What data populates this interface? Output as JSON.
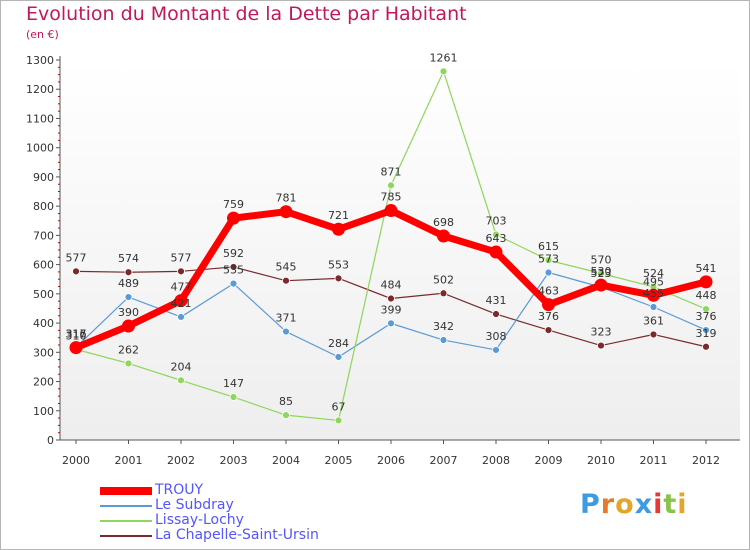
{
  "title": "Evolution du Montant de la Dette par Habitant",
  "subtitle": "(en €)",
  "brand": {
    "letters": [
      "P",
      "r",
      "o",
      "x",
      "i",
      "t",
      "i"
    ],
    "colors": [
      "#3f9be0",
      "#e57a2a",
      "#e5a52a",
      "#3f9be0",
      "#e53935",
      "#8bc34a",
      "#e5a52a"
    ]
  },
  "chart_data": {
    "type": "line",
    "title": "Evolution du Montant de la Dette par Habitant",
    "ylabel": "(en €)",
    "xlabel": "",
    "x": [
      "2000",
      "2001",
      "2002",
      "2003",
      "2004",
      "2005",
      "2006",
      "2007",
      "2008",
      "2009",
      "2010",
      "2011",
      "2012"
    ],
    "yticks": [
      "0",
      "100",
      "200",
      "300",
      "400",
      "500",
      "600",
      "700",
      "800",
      "900",
      "1000",
      "1100",
      "1200",
      "1300"
    ],
    "ylim": [
      0,
      1300
    ],
    "grid": false,
    "legend": "bottom-left",
    "series": [
      {
        "name": "La Chapelle-Saint-Ursin",
        "color": "#7a2a2a",
        "values": [
          577,
          574,
          577,
          592,
          545,
          553,
          484,
          502,
          431,
          376,
          323,
          361,
          319
        ],
        "labels": [
          "577",
          "574",
          "577",
          "592",
          "545",
          "553",
          "484",
          "502",
          "431",
          "376",
          "323",
          "361",
          "319"
        ]
      },
      {
        "name": "Le Subdray",
        "color": "#5b9bd5",
        "values": [
          317,
          489,
          421,
          535,
          371,
          284,
          399,
          342,
          308,
          573,
          523,
          455,
          376
        ],
        "labels": [
          "317",
          "489",
          "421",
          "535",
          "371",
          "284",
          "399",
          "342",
          "308",
          "573",
          "523",
          "455",
          "376"
        ]
      },
      {
        "name": "Lissay-Lochy",
        "color": "#8fd65a",
        "values": [
          310,
          262,
          204,
          147,
          85,
          67,
          871,
          1261,
          703,
          615,
          570,
          524,
          448
        ],
        "labels": [
          "310",
          "262",
          "204",
          "147",
          "85",
          "67",
          "871",
          "1261",
          "703",
          "615",
          "570",
          "524",
          "448"
        ]
      },
      {
        "name": "TROUY",
        "color": "#ff0000",
        "values": [
          316,
          390,
          477,
          759,
          781,
          721,
          785,
          698,
          643,
          463,
          530,
          495,
          541
        ],
        "labels": [
          "316",
          "390",
          "477",
          "759",
          "781",
          "721",
          "785",
          "698",
          "643",
          "463",
          "530",
          "495",
          "541"
        ]
      }
    ],
    "legend_order": [
      "TROUY",
      "Le Subdray",
      "Lissay-Lochy",
      "La Chapelle-Saint-Ursin"
    ]
  }
}
